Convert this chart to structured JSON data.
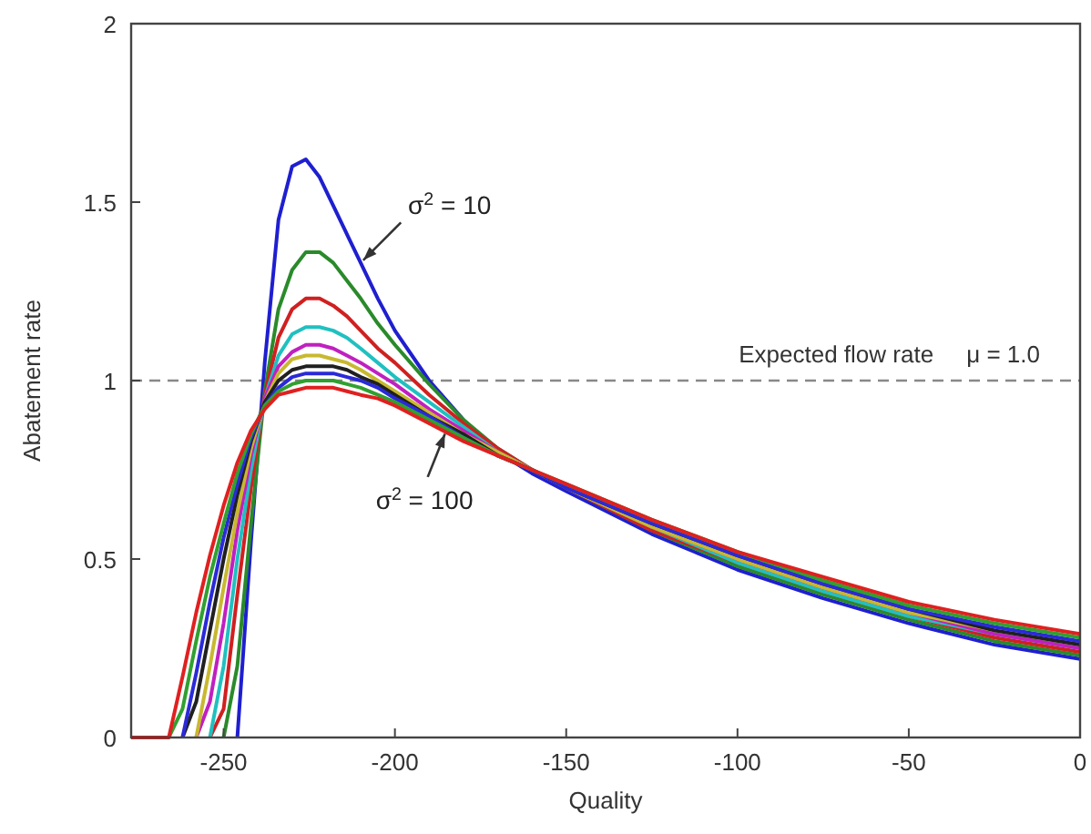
{
  "chart_data": {
    "type": "line",
    "xlabel": "Quality",
    "ylabel": "Abatement rate",
    "x": [
      -277,
      -266,
      -262,
      -258,
      -254,
      -250,
      -246,
      -242,
      -238,
      -234,
      -230,
      -226,
      -222,
      -218,
      -214,
      -210,
      -205,
      -200,
      -190,
      -180,
      -170,
      -160,
      -150,
      -125,
      -100,
      -75,
      -50,
      -25,
      0
    ],
    "series": [
      {
        "color": "#1f1fd0",
        "values": [
          null,
          null,
          null,
          null,
          null,
          null,
          0,
          0.55,
          1.05,
          1.45,
          1.6,
          1.62,
          1.57,
          1.49,
          1.41,
          1.33,
          1.23,
          1.14,
          1.0,
          0.89,
          0.8,
          0.74,
          0.69,
          0.57,
          0.47,
          0.39,
          0.32,
          0.26,
          0.22
        ]
      },
      {
        "color": "#2a8a2a",
        "values": [
          null,
          null,
          null,
          null,
          null,
          0,
          0.2,
          0.6,
          0.97,
          1.2,
          1.31,
          1.36,
          1.36,
          1.33,
          1.28,
          1.23,
          1.16,
          1.1,
          0.99,
          0.89,
          0.81,
          0.75,
          0.7,
          0.58,
          0.48,
          0.4,
          0.33,
          0.27,
          0.23
        ]
      },
      {
        "color": "#d02020",
        "values": [
          null,
          null,
          null,
          null,
          0,
          0.08,
          0.4,
          0.7,
          0.96,
          1.12,
          1.2,
          1.23,
          1.23,
          1.21,
          1.18,
          1.14,
          1.09,
          1.05,
          0.96,
          0.88,
          0.81,
          0.75,
          0.7,
          0.58,
          0.49,
          0.41,
          0.34,
          0.28,
          0.24
        ]
      },
      {
        "color": "#20c0c0",
        "values": [
          null,
          null,
          null,
          null,
          0,
          0.2,
          0.5,
          0.75,
          0.95,
          1.07,
          1.13,
          1.15,
          1.15,
          1.14,
          1.12,
          1.09,
          1.05,
          1.01,
          0.94,
          0.87,
          0.8,
          0.75,
          0.7,
          0.59,
          0.49,
          0.41,
          0.34,
          0.29,
          0.25
        ]
      },
      {
        "color": "#c020c0",
        "values": [
          null,
          null,
          null,
          0,
          0.1,
          0.32,
          0.58,
          0.79,
          0.95,
          1.04,
          1.08,
          1.1,
          1.1,
          1.09,
          1.07,
          1.05,
          1.02,
          0.99,
          0.92,
          0.86,
          0.8,
          0.75,
          0.7,
          0.59,
          0.5,
          0.42,
          0.35,
          0.29,
          0.25
        ]
      },
      {
        "color": "#c8b830",
        "values": [
          null,
          null,
          null,
          0,
          0.2,
          0.42,
          0.63,
          0.81,
          0.94,
          1.02,
          1.06,
          1.07,
          1.07,
          1.06,
          1.05,
          1.03,
          1.0,
          0.97,
          0.91,
          0.85,
          0.8,
          0.75,
          0.7,
          0.59,
          0.5,
          0.42,
          0.35,
          0.3,
          0.26
        ]
      },
      {
        "color": "#202020",
        "values": [
          null,
          null,
          0,
          0.1,
          0.3,
          0.5,
          0.68,
          0.83,
          0.94,
          1.0,
          1.03,
          1.04,
          1.04,
          1.04,
          1.03,
          1.01,
          0.99,
          0.96,
          0.9,
          0.85,
          0.79,
          0.75,
          0.7,
          0.6,
          0.51,
          0.43,
          0.36,
          0.3,
          0.26
        ]
      },
      {
        "color": "#2a2ad8",
        "values": [
          null,
          null,
          0,
          0.18,
          0.38,
          0.56,
          0.71,
          0.84,
          0.93,
          0.98,
          1.01,
          1.02,
          1.02,
          1.02,
          1.01,
          1.0,
          0.98,
          0.95,
          0.9,
          0.84,
          0.79,
          0.75,
          0.7,
          0.6,
          0.51,
          0.43,
          0.36,
          0.31,
          0.27
        ]
      },
      {
        "color": "#30a030",
        "values": [
          null,
          0,
          0.08,
          0.27,
          0.45,
          0.6,
          0.74,
          0.85,
          0.93,
          0.97,
          0.99,
          1.0,
          1.0,
          1.0,
          0.99,
          0.98,
          0.96,
          0.94,
          0.89,
          0.84,
          0.79,
          0.75,
          0.71,
          0.61,
          0.52,
          0.44,
          0.37,
          0.32,
          0.28
        ]
      },
      {
        "color": "#e02020",
        "values": [
          0,
          0,
          0.17,
          0.35,
          0.51,
          0.65,
          0.77,
          0.86,
          0.92,
          0.96,
          0.97,
          0.98,
          0.98,
          0.98,
          0.97,
          0.96,
          0.95,
          0.93,
          0.88,
          0.83,
          0.79,
          0.75,
          0.71,
          0.61,
          0.52,
          0.45,
          0.38,
          0.33,
          0.29
        ]
      }
    ],
    "xlim": [
      -277,
      0
    ],
    "ylim": [
      0,
      2
    ],
    "xticks": [
      -250,
      -200,
      -150,
      -100,
      -50,
      0
    ],
    "yticks": [
      0,
      0.5,
      1,
      1.5,
      2
    ],
    "grid": false,
    "line_style": "solid",
    "ref_lines": [
      {
        "axis": "y",
        "value": 1,
        "label": "Expected flow rate     μ = 1.0",
        "color": "#888888",
        "line_style": "dashed"
      }
    ],
    "annotations": [
      {
        "text": "σ$^{2}$ = 10",
        "x": -210,
        "y": 1.33
      },
      {
        "text": "σ$^{2}$ = 100",
        "x": -185,
        "y": 0.86
      }
    ]
  }
}
